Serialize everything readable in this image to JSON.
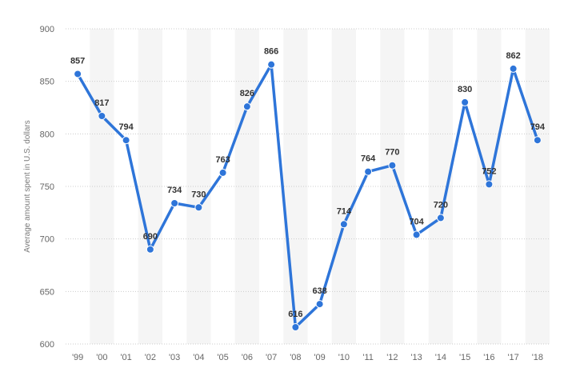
{
  "chart_data": {
    "type": "line",
    "title": "",
    "xlabel": "",
    "ylabel": "Average amount spent in U.S. dollars",
    "categories": [
      "'99",
      "'00",
      "'01",
      "'02",
      "'03",
      "'04",
      "'05",
      "'06",
      "'07",
      "'08",
      "'09",
      "'10",
      "'11",
      "'12",
      "'13",
      "'14",
      "'15",
      "'16",
      "'17",
      "'18"
    ],
    "series": [
      {
        "values": [
          857,
          817,
          794,
          690,
          734,
          730,
          763,
          826,
          866,
          616,
          638,
          714,
          764,
          770,
          704,
          720,
          830,
          752,
          862,
          794
        ]
      }
    ],
    "ylim": [
      600,
      900
    ],
    "yticks": [
      600,
      650,
      700,
      750,
      800,
      850,
      900
    ],
    "grid": true,
    "legend": "none",
    "colors": {
      "line": "#2e75d9",
      "band": "#f5f5f5",
      "grid": "#cccccc"
    }
  }
}
